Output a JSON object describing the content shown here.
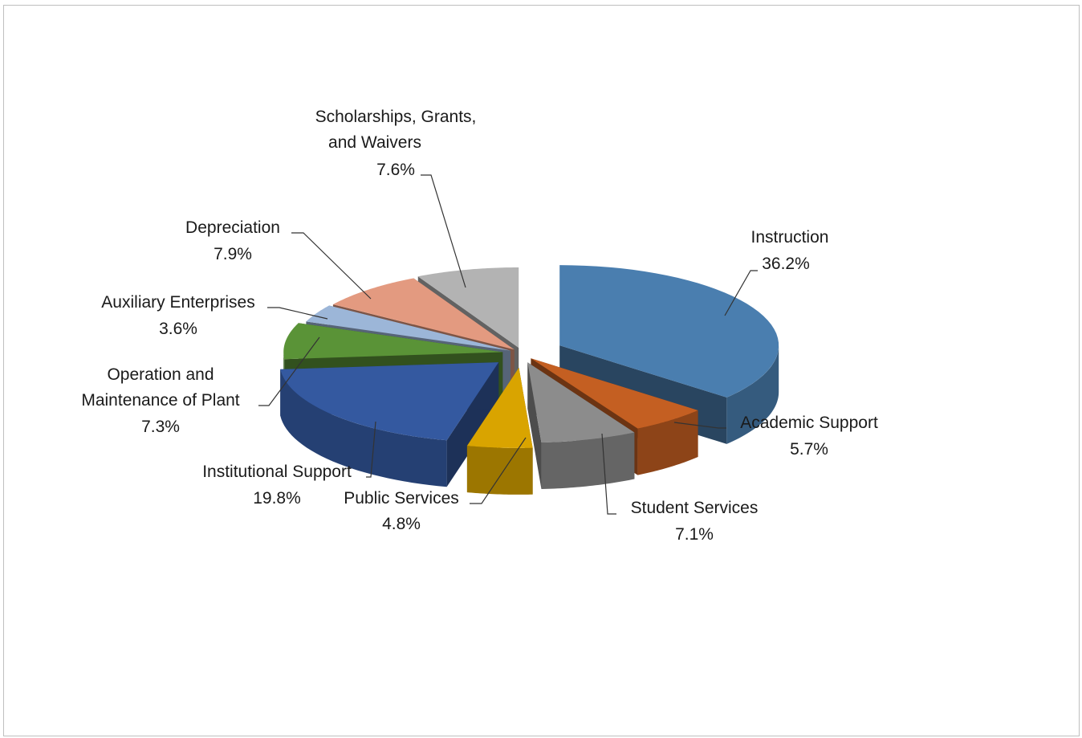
{
  "chart_data": {
    "type": "pie",
    "variant": "3d-exploded",
    "title": "",
    "units": "%",
    "legend": "none",
    "data_labels": "outside-with-leader-lines",
    "slices": [
      {
        "name": "Instruction",
        "value": 36.2,
        "label": "36.2%",
        "color": "#4a7eaf"
      },
      {
        "name": "Academic Support",
        "value": 5.7,
        "label": "5.7%",
        "color": "#c45f22"
      },
      {
        "name": "Student Services",
        "value": 7.1,
        "label": "7.1%",
        "color": "#8c8c8c"
      },
      {
        "name": "Public Services",
        "value": 4.8,
        "label": "4.8%",
        "color": "#d9a400"
      },
      {
        "name": "Institutional Support",
        "value": 19.8,
        "label": "19.8%",
        "color": "#3459a0"
      },
      {
        "name": "Operation and Maintenance of Plant",
        "value": 7.3,
        "label": "7.3%",
        "color": "#5a9337"
      },
      {
        "name": "Auxiliary Enterprises",
        "value": 3.6,
        "label": "3.6%",
        "color": "#9cb6d8"
      },
      {
        "name": "Depreciation",
        "value": 7.9,
        "label": "7.9%",
        "color": "#e39a80"
      },
      {
        "name": "Scholarships, Grants, and Waivers",
        "value": 7.6,
        "label": "7.6%",
        "color": "#b3b3b3"
      }
    ]
  }
}
